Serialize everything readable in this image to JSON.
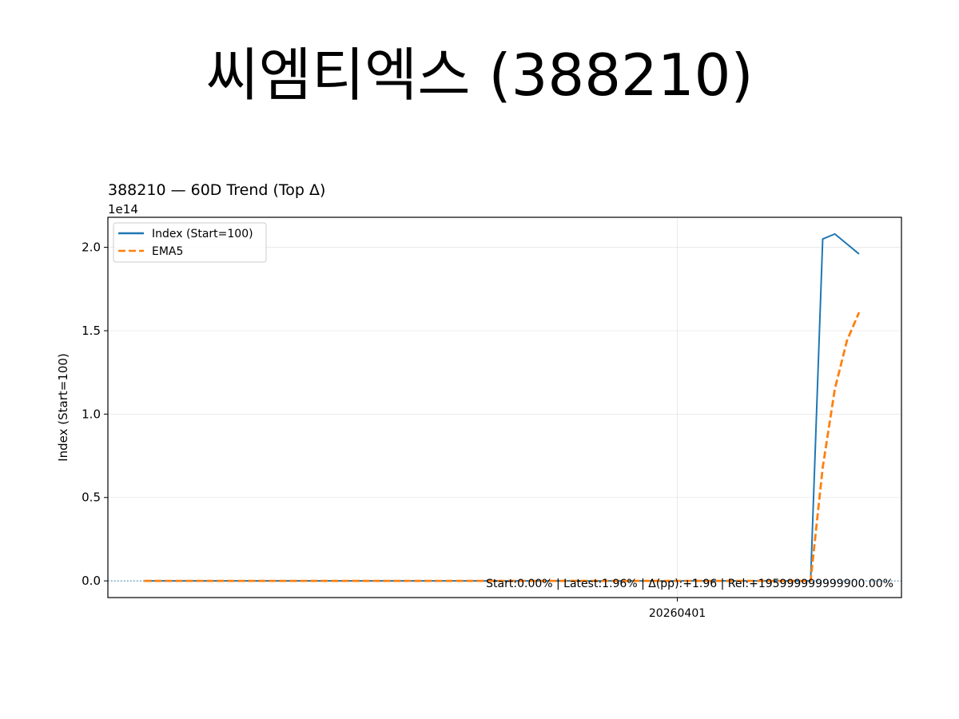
{
  "page": {
    "title": "씨엠티엑스 (388210)"
  },
  "chart_data": {
    "type": "line",
    "title": "388210 — 60D Trend (Top Δ)",
    "xlabel": "",
    "ylabel": "Index (Start=100)",
    "y_offset_label": "1e14",
    "y_unit_multiplier": 100000000000000,
    "x_count": 60,
    "x_ticks": [
      {
        "index": 44,
        "label": "20260401"
      }
    ],
    "xlim": [
      -3,
      62.5
    ],
    "ylim": [
      -0.1,
      2.18
    ],
    "y_ticks": [
      0.0,
      0.5,
      1.0,
      1.5,
      2.0
    ],
    "y_tick_labels": [
      "0.0",
      "0.5",
      "1.0",
      "1.5",
      "2.0"
    ],
    "grid": true,
    "legend_position": "top-left",
    "baseline": 0.0,
    "series": [
      {
        "name": "Index (Start=100)",
        "color": "#1f77b4",
        "style": "solid",
        "values": [
          0,
          0,
          0,
          0,
          0,
          0,
          0,
          0,
          0,
          0,
          0,
          0,
          0,
          0,
          0,
          0,
          0,
          0,
          0,
          0,
          0,
          0,
          0,
          0,
          0,
          0,
          0,
          0,
          0,
          0,
          0,
          0,
          0,
          0,
          0,
          0,
          0,
          0,
          0,
          0,
          0,
          0,
          0,
          0,
          0,
          0,
          0,
          0,
          0,
          0,
          0,
          0,
          0,
          0,
          0,
          0,
          2.05,
          2.08,
          2.02,
          1.96
        ]
      },
      {
        "name": "EMA5",
        "color": "#ff7f0e",
        "style": "dashed",
        "values": [
          0,
          0,
          0,
          0,
          0,
          0,
          0,
          0,
          0,
          0,
          0,
          0,
          0,
          0,
          0,
          0,
          0,
          0,
          0,
          0,
          0,
          0,
          0,
          0,
          0,
          0,
          0,
          0,
          0,
          0,
          0,
          0,
          0,
          0,
          0,
          0,
          0,
          0,
          0,
          0,
          0,
          0,
          0,
          0,
          0,
          0,
          0,
          0,
          0,
          0,
          0,
          0,
          0,
          0,
          0,
          0,
          0.68,
          1.15,
          1.44,
          1.61
        ]
      }
    ],
    "annotation": "Start:0.00% | Latest:1.96% | Δ(pp):+1.96 | Rel:+195999999999900.00%"
  }
}
